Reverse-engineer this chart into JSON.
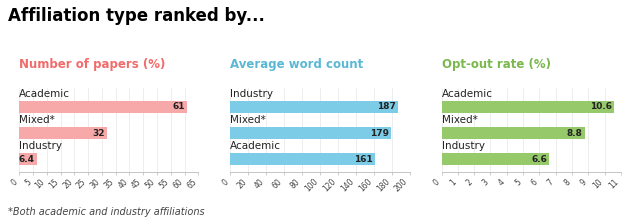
{
  "title": "Affiliation type ranked by...",
  "title_fontsize": 12,
  "subtitle_fontsize": 8.5,
  "bar_label_fontsize": 6.5,
  "category_fontsize": 7.5,
  "footnote": "*Both academic and industry affiliations",
  "footnote_fontsize": 7,
  "panel1": {
    "subtitle": "Number of papers (%)",
    "subtitle_color": "#f26b6b",
    "bar_color": "#f7a8a8",
    "categories": [
      "Academic",
      "Mixed*",
      "Industry"
    ],
    "values": [
      61,
      32,
      6.4
    ],
    "xlim": [
      0,
      65
    ],
    "xticks": [
      0,
      5,
      10,
      15,
      20,
      25,
      30,
      35,
      40,
      45,
      50,
      55,
      60,
      65
    ],
    "bar_labels": [
      "61",
      "32",
      "6.4"
    ]
  },
  "panel2": {
    "subtitle": "Average word count",
    "subtitle_color": "#5bb8d4",
    "bar_color": "#7ccce8",
    "categories": [
      "Industry",
      "Mixed*",
      "Academic"
    ],
    "values": [
      187,
      179,
      161
    ],
    "xlim": [
      0,
      200
    ],
    "xticks": [
      0,
      20,
      40,
      60,
      80,
      100,
      120,
      140,
      160,
      180,
      200
    ],
    "bar_labels": [
      "187",
      "179",
      "161"
    ]
  },
  "panel3": {
    "subtitle": "Opt-out rate (%)",
    "subtitle_color": "#7ab84e",
    "bar_color": "#96c96a",
    "categories": [
      "Academic",
      "Mixed*",
      "Industry"
    ],
    "values": [
      10.6,
      8.8,
      6.6
    ],
    "xlim": [
      0,
      11
    ],
    "xticks": [
      0,
      1,
      2,
      3,
      4,
      5,
      6,
      7,
      8,
      9,
      10,
      11
    ],
    "bar_labels": [
      "10.6",
      "8.8",
      "6.6"
    ]
  }
}
